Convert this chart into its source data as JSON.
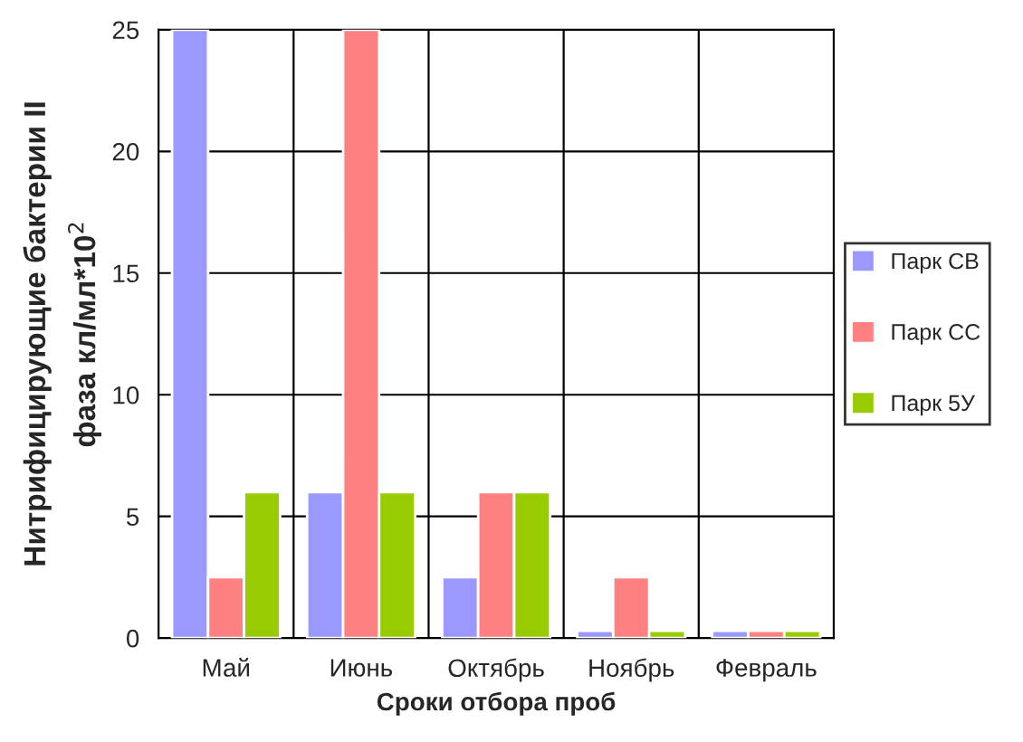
{
  "chart_data": {
    "type": "bar",
    "xlabel": "Сроки отбора проб",
    "ylabel": "Нитрифицирующие бактерии II\nфаза кл/мл*10$^{2}$",
    "categories": [
      "Май",
      "Июнь",
      "Октябрь",
      "Ноябрь",
      "Февраль"
    ],
    "series": [
      {
        "name": "Парк СВ",
        "color": "#9999ff",
        "values": [
          25,
          6,
          2.5,
          0.3,
          0.3
        ]
      },
      {
        "name": "Парк СС",
        "color": "#ff8080",
        "values": [
          2.5,
          25,
          6,
          2.5,
          0.3
        ]
      },
      {
        "name": "Парк 5У",
        "color": "#99cc00",
        "values": [
          6,
          6,
          6,
          0.3,
          0.3
        ]
      }
    ],
    "ylim": [
      0,
      25
    ],
    "yticks": [
      0,
      5,
      10,
      15,
      20,
      25
    ],
    "grid": true,
    "legend": "right"
  }
}
